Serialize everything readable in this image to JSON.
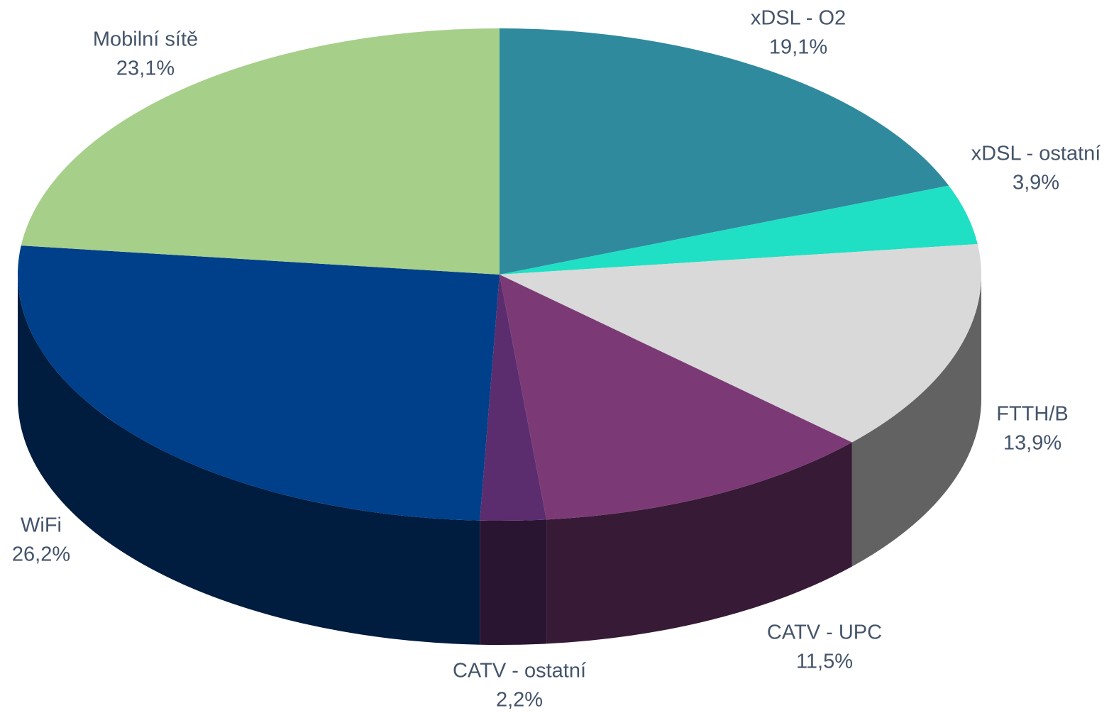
{
  "chart_data": {
    "type": "pie",
    "categories": [
      "xDSL - O2",
      "xDSL - ostatní",
      "FTTH/B",
      "CATV - UPC",
      "CATV - ostatní",
      "WiFi",
      "Mobilní sítě"
    ],
    "values": [
      19.1,
      3.9,
      13.9,
      11.5,
      2.2,
      26.2,
      23.1
    ],
    "value_labels": [
      "19,1%",
      "3,9%",
      "13,9%",
      "11,5%",
      "2,2%",
      "26,2%",
      "23,1%"
    ],
    "colors": [
      "#2f8a9e",
      "#1fe0c4",
      "#d9d9d9",
      "#7b3a76",
      "#5b2d6e",
      "#003f8a",
      "#a6cf8a"
    ]
  }
}
